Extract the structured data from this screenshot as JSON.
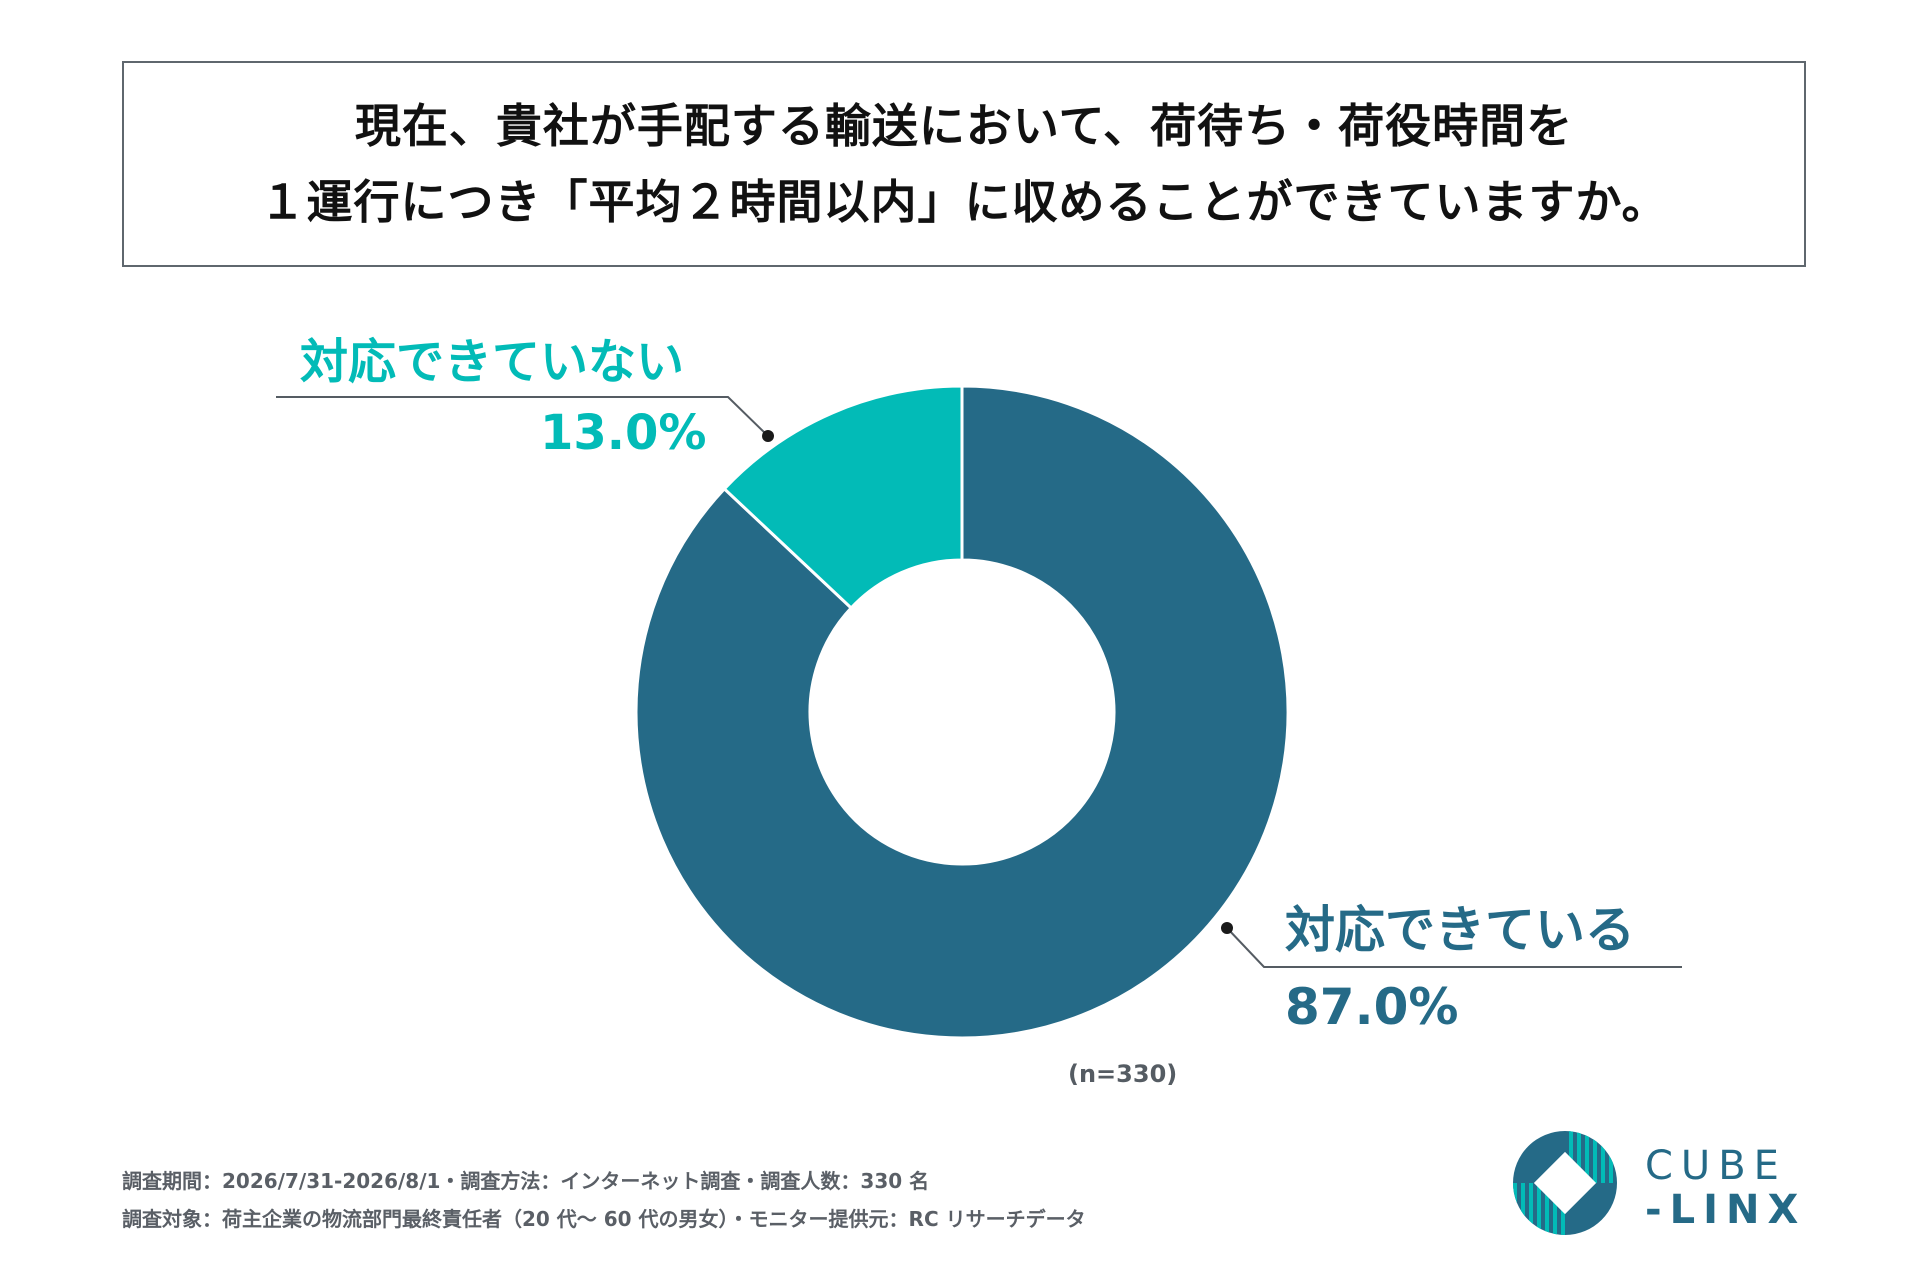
{
  "title": {
    "line1": "現在、貴社が手配する輸送において、荷待ち・荷役時間を",
    "line2": "１運行につき「平均２時間以内」に収めることができていますか。"
  },
  "chart_data": {
    "type": "pie",
    "donut": true,
    "slices": [
      {
        "label": "対応できている",
        "value": 87.0,
        "display": "87.0%",
        "color": "#256a87"
      },
      {
        "label": "対応できていない",
        "value": 13.0,
        "display": "13.0%",
        "color": "#02bbb7"
      }
    ],
    "sample_note": "(n=330)"
  },
  "footer": {
    "line1": "調査期間：2026/7/31-2026/8/1・調査方法：インターネット調査・調査人数：330 名",
    "line2": "調査対象：荷主企業の物流部門最終責任者（20 代〜 60 代の男女）・モニター提供元：RC リサーチデータ"
  },
  "logo": {
    "line1": "CUBE",
    "line2": "-LINX",
    "color": "#256a87",
    "accent": "#02bbb7"
  }
}
